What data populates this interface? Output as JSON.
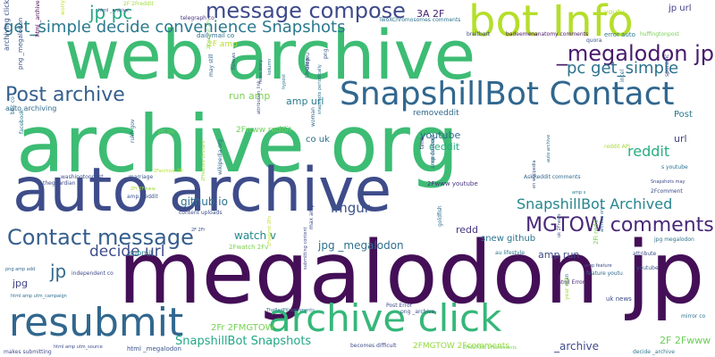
{
  "words": [
    {
      "text": "archive org",
      "color": "#3dbc74"
    },
    {
      "text": "megalodon jp",
      "color": "#440f57"
    },
    {
      "text": "web archive",
      "color": "#3dbc74"
    },
    {
      "text": "auto archive",
      "color": "#3e4c8a"
    },
    {
      "text": "bot Info",
      "color": "#b5de2b"
    },
    {
      "text": "SnapshillBot Contact",
      "color": "#31678e"
    },
    {
      "text": "resubmit",
      "color": "#31678e"
    },
    {
      "text": "archive click",
      "color": "#35b779"
    },
    {
      "text": "Contact message",
      "color": "#355e8d"
    },
    {
      "text": "message compose",
      "color": "#3e4a89"
    },
    {
      "text": "MGTOW comments",
      "color": "#482878"
    },
    {
      "text": "Post archive",
      "color": "#355f8d"
    },
    {
      "text": "_megalodon jp",
      "color": "#481a6c"
    },
    {
      "text": "get_simple decide convenience Snapshots",
      "color": "#2a788e"
    },
    {
      "text": "jp pc",
      "color": "#22a884"
    },
    {
      "text": "pc get_simple",
      "color": "#2c728e"
    },
    {
      "text": "SnapshillBot Archived",
      "color": "#25858e"
    },
    {
      "text": "decide url",
      "color": "#3e4c8a"
    },
    {
      "text": "jp url",
      "color": "#433e85"
    },
    {
      "text": "jp",
      "color": "#31688e"
    },
    {
      "text": "reddit",
      "color": "#26ad81"
    },
    {
      "text": "imgur",
      "color": "#3b528b"
    },
    {
      "text": "github io",
      "color": "#2d708e"
    },
    {
      "text": "watch v",
      "color": "#23898e"
    },
    {
      "text": "SnapshillBot Snapshots",
      "color": "#22a884"
    },
    {
      "text": "amp url",
      "color": "#287d8e"
    },
    {
      "text": "jpg _megalodon",
      "color": "#2d708e"
    },
    {
      "text": "amp run",
      "color": "#3f4889"
    },
    {
      "text": "snew github",
      "color": "#2c738e"
    },
    {
      "text": "2F 2Fwww",
      "color": "#6ccd5a"
    },
    {
      "text": "2Fr 2FMGTOW",
      "color": "#75d054"
    },
    {
      "text": "_archive",
      "color": "#3e4989"
    },
    {
      "text": "run amp",
      "color": "#7ad151"
    },
    {
      "text": "youtube",
      "color": "#31688e"
    },
    {
      "text": "ceddit",
      "color": "#26ad81"
    },
    {
      "text": "redd",
      "color": "#46337f"
    },
    {
      "text": "removeddit",
      "color": "#31688e"
    },
    {
      "text": "3A 2F",
      "color": "#482173"
    },
    {
      "text": "url",
      "color": "#414487"
    },
    {
      "text": "Post",
      "color": "#2a788e"
    },
    {
      "text": "co uk",
      "color": "#2c728e"
    },
    {
      "text": "jpg",
      "color": "#414487"
    },
    {
      "text": "auto archiving",
      "color": "#2f6b8e"
    },
    {
      "text": "2Fwww reddit",
      "color": "#6ece58"
    },
    {
      "text": "2FMGTOW 2Fcomments",
      "color": "#95d840"
    },
    {
      "text": "2F amp",
      "color": "#b8de29"
    },
    {
      "text": "submit",
      "color": "#26828e"
    },
    {
      "text": "archiving click",
      "color": "#3b528b"
    },
    {
      "text": "html _archive",
      "color": "#440154"
    },
    {
      "text": "worry",
      "color": "#c2df23"
    },
    {
      "text": "dailymail co",
      "color": "#2e6e8e"
    },
    {
      "text": "telegraph co",
      "color": "#46327e"
    },
    {
      "text": "youtu",
      "color": "#b5de2b"
    },
    {
      "text": "png _megalodon",
      "color": "#3b528b"
    },
    {
      "text": "reddit API",
      "color": "#a8db34"
    },
    {
      "text": "2F 2Freddit",
      "color": "#9fda3a"
    },
    {
      "text": "badeemenanatomy comments",
      "color": "#481769"
    },
    {
      "text": "TwoXChromosomes comments",
      "color": "#2c728e"
    },
    {
      "text": "breitbart",
      "color": "#3e4a89"
    },
    {
      "text": "error auto",
      "color": "#2a788e"
    },
    {
      "text": "huffingtonpost",
      "color": "#7ad151"
    },
    {
      "text": "quora",
      "color": "#3b528b"
    },
    {
      "text": "snapshots periodically",
      "color": "#2c728e"
    },
    {
      "text": "facebook",
      "color": "#2a788e"
    },
    {
      "text": "rukh gov",
      "color": "#31688e"
    },
    {
      "text": "washingtonpost",
      "color": "#3e4c8a"
    },
    {
      "text": "theguardian",
      "color": "#3e4c8a"
    },
    {
      "text": "amp Ceddit",
      "color": "#3b528b"
    },
    {
      "text": "2Fr 2Fwww",
      "color": "#a0da39"
    },
    {
      "text": "2Fsubmit 2Fn",
      "color": "#7ad151"
    },
    {
      "text": "wikipedia org",
      "color": "#31688e"
    },
    {
      "text": "2Farchive 2Fr",
      "color": "#b5de2b"
    },
    {
      "text": "2Ffeature 2Fshare",
      "color": "#95d840"
    },
    {
      "text": "content uploads",
      "color": "#3e4c8a"
    },
    {
      "text": "time",
      "color": "#46327e"
    },
    {
      "text": "endeavor",
      "color": "#2c728e"
    },
    {
      "text": "amp content",
      "color": "#2e6e8e"
    },
    {
      "text": "goldfish",
      "color": "#2f6b8e"
    },
    {
      "text": "max amp",
      "color": "#3e4a89"
    },
    {
      "text": "html Error",
      "color": "#482878"
    },
    {
      "text": "html _megalodon",
      "color": "#3b528b"
    },
    {
      "text": "becomes difficult",
      "color": "#3e4c8a"
    },
    {
      "text": "makes submitting",
      "color": "#3e4c8a"
    },
    {
      "text": "png amp add",
      "color": "#31688e"
    },
    {
      "text": "html amp utm_campaign",
      "color": "#2e6e8e"
    },
    {
      "text": "independent co",
      "color": "#3e4c8a"
    },
    {
      "text": "2FMGTOW 2Fcomments",
      "color": "#7ad151"
    },
    {
      "text": "uk news",
      "color": "#3e4989"
    },
    {
      "text": "mirror co",
      "color": "#2c728e"
    },
    {
      "text": "youtube",
      "color": "#3b528b"
    },
    {
      "text": "jpg megalodon",
      "color": "#2c728e"
    },
    {
      "text": "attribute",
      "color": "#3e4c8a"
    },
    {
      "text": "feature youtu",
      "color": "#31688e"
    },
    {
      "text": "au lifestyle",
      "color": "#2a788e"
    },
    {
      "text": "AskReddit comments",
      "color": "#31688e"
    },
    {
      "text": "amp feature",
      "color": "#3e4c8a"
    },
    {
      "text": "2Fwww youtube",
      "color": "#46337f"
    },
    {
      "text": "2Fcomment",
      "color": "#3e4989"
    },
    {
      "text": "Snapshots may",
      "color": "#3e4989"
    },
    {
      "text": "s youtube",
      "color": "#2c728e"
    },
    {
      "text": "woman",
      "color": "#31688e"
    },
    {
      "text": "may still",
      "color": "#31688e"
    },
    {
      "text": "fixnews",
      "color": "#3b528b"
    },
    {
      "text": "kolumn",
      "color": "#2c728e"
    },
    {
      "text": "hypost",
      "color": "#2c728e"
    },
    {
      "text": "attribution_link",
      "color": "#3e4c8a"
    },
    {
      "text": "Post Error",
      "color": "#3e4c8a"
    },
    {
      "text": "png _archive",
      "color": "#3b528b"
    },
    {
      "text": "TheRedPill comments",
      "color": "#2a788e"
    },
    {
      "text": "marriage",
      "color": "#3b528b"
    },
    {
      "text": "2Fsubmit 2Fn",
      "color": "#b8de29"
    },
    {
      "text": "archive org",
      "color": "#2c728e"
    },
    {
      "text": "bbc co",
      "color": "#2c728e"
    },
    {
      "text": "amp s",
      "color": "#2a788e"
    },
    {
      "text": "incel",
      "color": "#31688e"
    },
    {
      "text": "sporadic",
      "color": "#3e4c8a"
    },
    {
      "text": "html amp utm_source",
      "color": "#3e4c8a"
    },
    {
      "text": "decide _archive",
      "color": "#2a788e"
    },
    {
      "text": "2Fi 2Fr",
      "color": "#7ad151"
    },
    {
      "text": "2F 2Fr",
      "color": "#3b528b"
    },
    {
      "text": "html _archive",
      "color": "#3e4c8a"
    },
    {
      "text": "png",
      "color": "#3b528b"
    },
    {
      "text": "man",
      "color": "#31688e"
    },
    {
      "text": "year old",
      "color": "#a8db34"
    },
    {
      "text": "amp u",
      "color": "#3b528b"
    },
    {
      "text": "Liberopay",
      "color": "#3e4c8a"
    },
    {
      "text": "en wikipedia",
      "color": "#3b528b"
    },
    {
      "text": "2Fi redd",
      "color": "#7ad151"
    },
    {
      "text": "uk 2Fnews",
      "color": "#3b528b"
    },
    {
      "text": "auto archive",
      "color": "#2c728e"
    },
    {
      "text": "submitting content",
      "color": "#3e4c8a"
    },
    {
      "text": "news story",
      "color": "#3b528b"
    },
    {
      "text": "2Fwatch 2Fv",
      "color": "#7ad151"
    }
  ]
}
